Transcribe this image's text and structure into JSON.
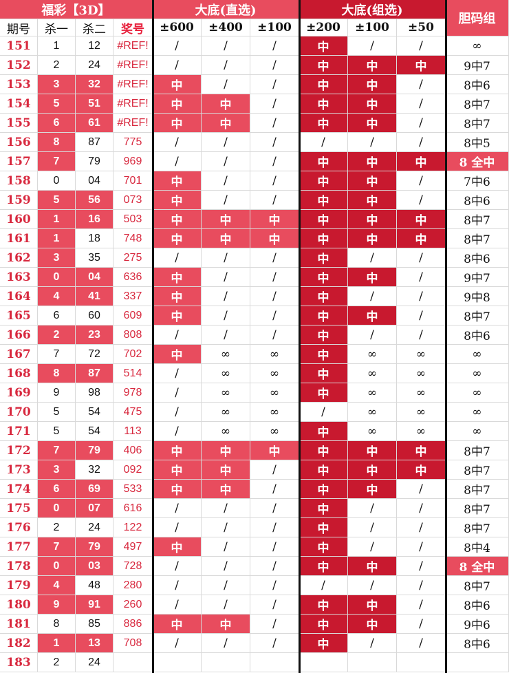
{
  "header": {
    "group_fucai": "福彩【3D】",
    "group_direct": "大底(直选)",
    "group_combo": "大底(组选)",
    "group_dan": "胆码组",
    "col_issue": "期号",
    "col_kill1": "杀一",
    "col_kill2": "杀二",
    "col_award": "奖号",
    "col_d600": "±600",
    "col_d400": "±400",
    "col_d100": "±100",
    "col_c200": "±200",
    "col_c100": "±100",
    "col_c50": "±50"
  },
  "colors": {
    "pink": "#e84c5e",
    "red": "#c8192f",
    "id_text": "#d8283e"
  },
  "rows": [
    {
      "issue": "151",
      "k1": "1",
      "k1h": false,
      "k2": "12",
      "k2h": false,
      "award": "#REF!",
      "d600": "/",
      "d600h": false,
      "d400": "/",
      "d400h": false,
      "d100": "/",
      "d100h": false,
      "c200": "中",
      "c200h": true,
      "c100": "/",
      "c100h": false,
      "c50": "/",
      "c50h": false,
      "dan": "∞",
      "danh": false
    },
    {
      "issue": "152",
      "k1": "2",
      "k1h": false,
      "k2": "24",
      "k2h": false,
      "award": "#REF!",
      "d600": "/",
      "d600h": false,
      "d400": "/",
      "d400h": false,
      "d100": "/",
      "d100h": false,
      "c200": "中",
      "c200h": true,
      "c100": "中",
      "c100h": true,
      "c50": "中",
      "c50h": true,
      "dan": "9中7",
      "danh": false
    },
    {
      "issue": "153",
      "k1": "3",
      "k1h": true,
      "k2": "32",
      "k2h": true,
      "award": "#REF!",
      "d600": "中",
      "d600h": true,
      "d400": "/",
      "d400h": false,
      "d100": "/",
      "d100h": false,
      "c200": "中",
      "c200h": true,
      "c100": "中",
      "c100h": true,
      "c50": "/",
      "c50h": false,
      "dan": "8中6",
      "danh": false
    },
    {
      "issue": "154",
      "k1": "5",
      "k1h": true,
      "k2": "51",
      "k2h": true,
      "award": "#REF!",
      "d600": "中",
      "d600h": true,
      "d400": "中",
      "d400h": true,
      "d100": "/",
      "d100h": false,
      "c200": "中",
      "c200h": true,
      "c100": "中",
      "c100h": true,
      "c50": "/",
      "c50h": false,
      "dan": "8中7",
      "danh": false
    },
    {
      "issue": "155",
      "k1": "6",
      "k1h": true,
      "k2": "61",
      "k2h": true,
      "award": "#REF!",
      "d600": "中",
      "d600h": true,
      "d400": "中",
      "d400h": true,
      "d100": "/",
      "d100h": false,
      "c200": "中",
      "c200h": true,
      "c100": "中",
      "c100h": true,
      "c50": "/",
      "c50h": false,
      "dan": "8中7",
      "danh": false
    },
    {
      "issue": "156",
      "k1": "8",
      "k1h": true,
      "k2": "87",
      "k2h": false,
      "award": "775",
      "d600": "/",
      "d600h": false,
      "d400": "/",
      "d400h": false,
      "d100": "/",
      "d100h": false,
      "c200": "/",
      "c200h": false,
      "c100": "/",
      "c100h": false,
      "c50": "/",
      "c50h": false,
      "dan": "8中5",
      "danh": false
    },
    {
      "issue": "157",
      "k1": "7",
      "k1h": true,
      "k2": "79",
      "k2h": false,
      "award": "969",
      "d600": "/",
      "d600h": false,
      "d400": "/",
      "d400h": false,
      "d100": "/",
      "d100h": false,
      "c200": "中",
      "c200h": true,
      "c100": "中",
      "c100h": true,
      "c50": "中",
      "c50h": true,
      "dan": "8 全中",
      "danh": true
    },
    {
      "issue": "158",
      "k1": "0",
      "k1h": false,
      "k2": "04",
      "k2h": false,
      "award": "701",
      "d600": "中",
      "d600h": true,
      "d400": "/",
      "d400h": false,
      "d100": "/",
      "d100h": false,
      "c200": "中",
      "c200h": true,
      "c100": "中",
      "c100h": true,
      "c50": "/",
      "c50h": false,
      "dan": "7中6",
      "danh": false
    },
    {
      "issue": "159",
      "k1": "5",
      "k1h": true,
      "k2": "56",
      "k2h": true,
      "award": "073",
      "d600": "中",
      "d600h": true,
      "d400": "/",
      "d400h": false,
      "d100": "/",
      "d100h": false,
      "c200": "中",
      "c200h": true,
      "c100": "中",
      "c100h": true,
      "c50": "/",
      "c50h": false,
      "dan": "8中6",
      "danh": false
    },
    {
      "issue": "160",
      "k1": "1",
      "k1h": true,
      "k2": "16",
      "k2h": true,
      "award": "503",
      "d600": "中",
      "d600h": true,
      "d400": "中",
      "d400h": true,
      "d100": "中",
      "d100h": true,
      "c200": "中",
      "c200h": true,
      "c100": "中",
      "c100h": true,
      "c50": "中",
      "c50h": true,
      "dan": "8中7",
      "danh": false
    },
    {
      "issue": "161",
      "k1": "1",
      "k1h": true,
      "k2": "18",
      "k2h": false,
      "award": "748",
      "d600": "中",
      "d600h": true,
      "d400": "中",
      "d400h": true,
      "d100": "中",
      "d100h": true,
      "c200": "中",
      "c200h": true,
      "c100": "中",
      "c100h": true,
      "c50": "中",
      "c50h": true,
      "dan": "8中7",
      "danh": false
    },
    {
      "issue": "162",
      "k1": "3",
      "k1h": true,
      "k2": "35",
      "k2h": false,
      "award": "275",
      "d600": "/",
      "d600h": false,
      "d400": "/",
      "d400h": false,
      "d100": "/",
      "d100h": false,
      "c200": "中",
      "c200h": true,
      "c100": "/",
      "c100h": false,
      "c50": "/",
      "c50h": false,
      "dan": "8中6",
      "danh": false
    },
    {
      "issue": "163",
      "k1": "0",
      "k1h": true,
      "k2": "04",
      "k2h": true,
      "award": "636",
      "d600": "中",
      "d600h": true,
      "d400": "/",
      "d400h": false,
      "d100": "/",
      "d100h": false,
      "c200": "中",
      "c200h": true,
      "c100": "中",
      "c100h": true,
      "c50": "/",
      "c50h": false,
      "dan": "9中7",
      "danh": false
    },
    {
      "issue": "164",
      "k1": "4",
      "k1h": true,
      "k2": "41",
      "k2h": true,
      "award": "337",
      "d600": "中",
      "d600h": true,
      "d400": "/",
      "d400h": false,
      "d100": "/",
      "d100h": false,
      "c200": "中",
      "c200h": true,
      "c100": "/",
      "c100h": false,
      "c50": "/",
      "c50h": false,
      "dan": "9中8",
      "danh": false
    },
    {
      "issue": "165",
      "k1": "6",
      "k1h": false,
      "k2": "60",
      "k2h": false,
      "award": "609",
      "d600": "中",
      "d600h": true,
      "d400": "/",
      "d400h": false,
      "d100": "/",
      "d100h": false,
      "c200": "中",
      "c200h": true,
      "c100": "中",
      "c100h": true,
      "c50": "/",
      "c50h": false,
      "dan": "8中7",
      "danh": false
    },
    {
      "issue": "166",
      "k1": "2",
      "k1h": true,
      "k2": "23",
      "k2h": true,
      "award": "808",
      "d600": "/",
      "d600h": false,
      "d400": "/",
      "d400h": false,
      "d100": "/",
      "d100h": false,
      "c200": "中",
      "c200h": true,
      "c100": "/",
      "c100h": false,
      "c50": "/",
      "c50h": false,
      "dan": "8中6",
      "danh": false
    },
    {
      "issue": "167",
      "k1": "7",
      "k1h": false,
      "k2": "72",
      "k2h": false,
      "award": "702",
      "d600": "中",
      "d600h": true,
      "d400": "∞",
      "d400h": false,
      "d100": "∞",
      "d100h": false,
      "c200": "中",
      "c200h": true,
      "c100": "∞",
      "c100h": false,
      "c50": "∞",
      "c50h": false,
      "dan": "∞",
      "danh": false
    },
    {
      "issue": "168",
      "k1": "8",
      "k1h": true,
      "k2": "87",
      "k2h": true,
      "award": "514",
      "d600": "/",
      "d600h": false,
      "d400": "∞",
      "d400h": false,
      "d100": "∞",
      "d100h": false,
      "c200": "中",
      "c200h": true,
      "c100": "∞",
      "c100h": false,
      "c50": "∞",
      "c50h": false,
      "dan": "∞",
      "danh": false
    },
    {
      "issue": "169",
      "k1": "9",
      "k1h": false,
      "k2": "98",
      "k2h": false,
      "award": "978",
      "d600": "/",
      "d600h": false,
      "d400": "∞",
      "d400h": false,
      "d100": "∞",
      "d100h": false,
      "c200": "中",
      "c200h": true,
      "c100": "∞",
      "c100h": false,
      "c50": "∞",
      "c50h": false,
      "dan": "∞",
      "danh": false
    },
    {
      "issue": "170",
      "k1": "5",
      "k1h": false,
      "k2": "54",
      "k2h": false,
      "award": "475",
      "d600": "/",
      "d600h": false,
      "d400": "∞",
      "d400h": false,
      "d100": "∞",
      "d100h": false,
      "c200": "/",
      "c200h": false,
      "c100": "∞",
      "c100h": false,
      "c50": "∞",
      "c50h": false,
      "dan": "∞",
      "danh": false
    },
    {
      "issue": "171",
      "k1": "5",
      "k1h": false,
      "k2": "54",
      "k2h": false,
      "award": "113",
      "d600": "/",
      "d600h": false,
      "d400": "∞",
      "d400h": false,
      "d100": "∞",
      "d100h": false,
      "c200": "中",
      "c200h": true,
      "c100": "∞",
      "c100h": false,
      "c50": "∞",
      "c50h": false,
      "dan": "∞",
      "danh": false
    },
    {
      "issue": "172",
      "k1": "7",
      "k1h": true,
      "k2": "79",
      "k2h": true,
      "award": "406",
      "d600": "中",
      "d600h": true,
      "d400": "中",
      "d400h": true,
      "d100": "中",
      "d100h": true,
      "c200": "中",
      "c200h": true,
      "c100": "中",
      "c100h": true,
      "c50": "中",
      "c50h": true,
      "dan": "8中7",
      "danh": false
    },
    {
      "issue": "173",
      "k1": "3",
      "k1h": true,
      "k2": "32",
      "k2h": false,
      "award": "092",
      "d600": "中",
      "d600h": true,
      "d400": "中",
      "d400h": true,
      "d100": "/",
      "d100h": false,
      "c200": "中",
      "c200h": true,
      "c100": "中",
      "c100h": true,
      "c50": "中",
      "c50h": true,
      "dan": "8中7",
      "danh": false
    },
    {
      "issue": "174",
      "k1": "6",
      "k1h": true,
      "k2": "69",
      "k2h": true,
      "award": "533",
      "d600": "中",
      "d600h": true,
      "d400": "中",
      "d400h": true,
      "d100": "/",
      "d100h": false,
      "c200": "中",
      "c200h": true,
      "c100": "中",
      "c100h": true,
      "c50": "/",
      "c50h": false,
      "dan": "8中7",
      "danh": false
    },
    {
      "issue": "175",
      "k1": "0",
      "k1h": true,
      "k2": "07",
      "k2h": true,
      "award": "616",
      "d600": "/",
      "d600h": false,
      "d400": "/",
      "d400h": false,
      "d100": "/",
      "d100h": false,
      "c200": "中",
      "c200h": true,
      "c100": "/",
      "c100h": false,
      "c50": "/",
      "c50h": false,
      "dan": "8中7",
      "danh": false
    },
    {
      "issue": "176",
      "k1": "2",
      "k1h": false,
      "k2": "24",
      "k2h": false,
      "award": "122",
      "d600": "/",
      "d600h": false,
      "d400": "/",
      "d400h": false,
      "d100": "/",
      "d100h": false,
      "c200": "中",
      "c200h": true,
      "c100": "/",
      "c100h": false,
      "c50": "/",
      "c50h": false,
      "dan": "8中7",
      "danh": false
    },
    {
      "issue": "177",
      "k1": "7",
      "k1h": true,
      "k2": "79",
      "k2h": true,
      "award": "497",
      "d600": "中",
      "d600h": true,
      "d400": "/",
      "d400h": false,
      "d100": "/",
      "d100h": false,
      "c200": "中",
      "c200h": true,
      "c100": "/",
      "c100h": false,
      "c50": "/",
      "c50h": false,
      "dan": "8中4",
      "danh": false
    },
    {
      "issue": "178",
      "k1": "0",
      "k1h": true,
      "k2": "03",
      "k2h": true,
      "award": "728",
      "d600": "/",
      "d600h": false,
      "d400": "/",
      "d400h": false,
      "d100": "/",
      "d100h": false,
      "c200": "中",
      "c200h": true,
      "c100": "中",
      "c100h": true,
      "c50": "/",
      "c50h": false,
      "dan": "8 全中",
      "danh": true
    },
    {
      "issue": "179",
      "k1": "4",
      "k1h": true,
      "k2": "48",
      "k2h": false,
      "award": "280",
      "d600": "/",
      "d600h": false,
      "d400": "/",
      "d400h": false,
      "d100": "/",
      "d100h": false,
      "c200": "/",
      "c200h": false,
      "c100": "/",
      "c100h": false,
      "c50": "/",
      "c50h": false,
      "dan": "8中7",
      "danh": false
    },
    {
      "issue": "180",
      "k1": "9",
      "k1h": true,
      "k2": "91",
      "k2h": true,
      "award": "260",
      "d600": "/",
      "d600h": false,
      "d400": "/",
      "d400h": false,
      "d100": "/",
      "d100h": false,
      "c200": "中",
      "c200h": true,
      "c100": "中",
      "c100h": true,
      "c50": "/",
      "c50h": false,
      "dan": "8中6",
      "danh": false
    },
    {
      "issue": "181",
      "k1": "8",
      "k1h": false,
      "k2": "85",
      "k2h": false,
      "award": "886",
      "d600": "中",
      "d600h": true,
      "d400": "中",
      "d400h": true,
      "d100": "/",
      "d100h": false,
      "c200": "中",
      "c200h": true,
      "c100": "中",
      "c100h": true,
      "c50": "/",
      "c50h": false,
      "dan": "9中6",
      "danh": false
    },
    {
      "issue": "182",
      "k1": "1",
      "k1h": true,
      "k2": "13",
      "k2h": true,
      "award": "708",
      "d600": "/",
      "d600h": false,
      "d400": "/",
      "d400h": false,
      "d100": "/",
      "d100h": false,
      "c200": "中",
      "c200h": true,
      "c100": "/",
      "c100h": false,
      "c50": "/",
      "c50h": false,
      "dan": "8中6",
      "danh": false
    },
    {
      "issue": "183",
      "k1": "2",
      "k1h": false,
      "k2": "24",
      "k2h": false,
      "award": "",
      "d600": "",
      "d600h": false,
      "d400": "",
      "d400h": false,
      "d100": "",
      "d100h": false,
      "c200": "",
      "c200h": false,
      "c100": "",
      "c100h": false,
      "c50": "",
      "c50h": false,
      "dan": "",
      "danh": false
    }
  ]
}
